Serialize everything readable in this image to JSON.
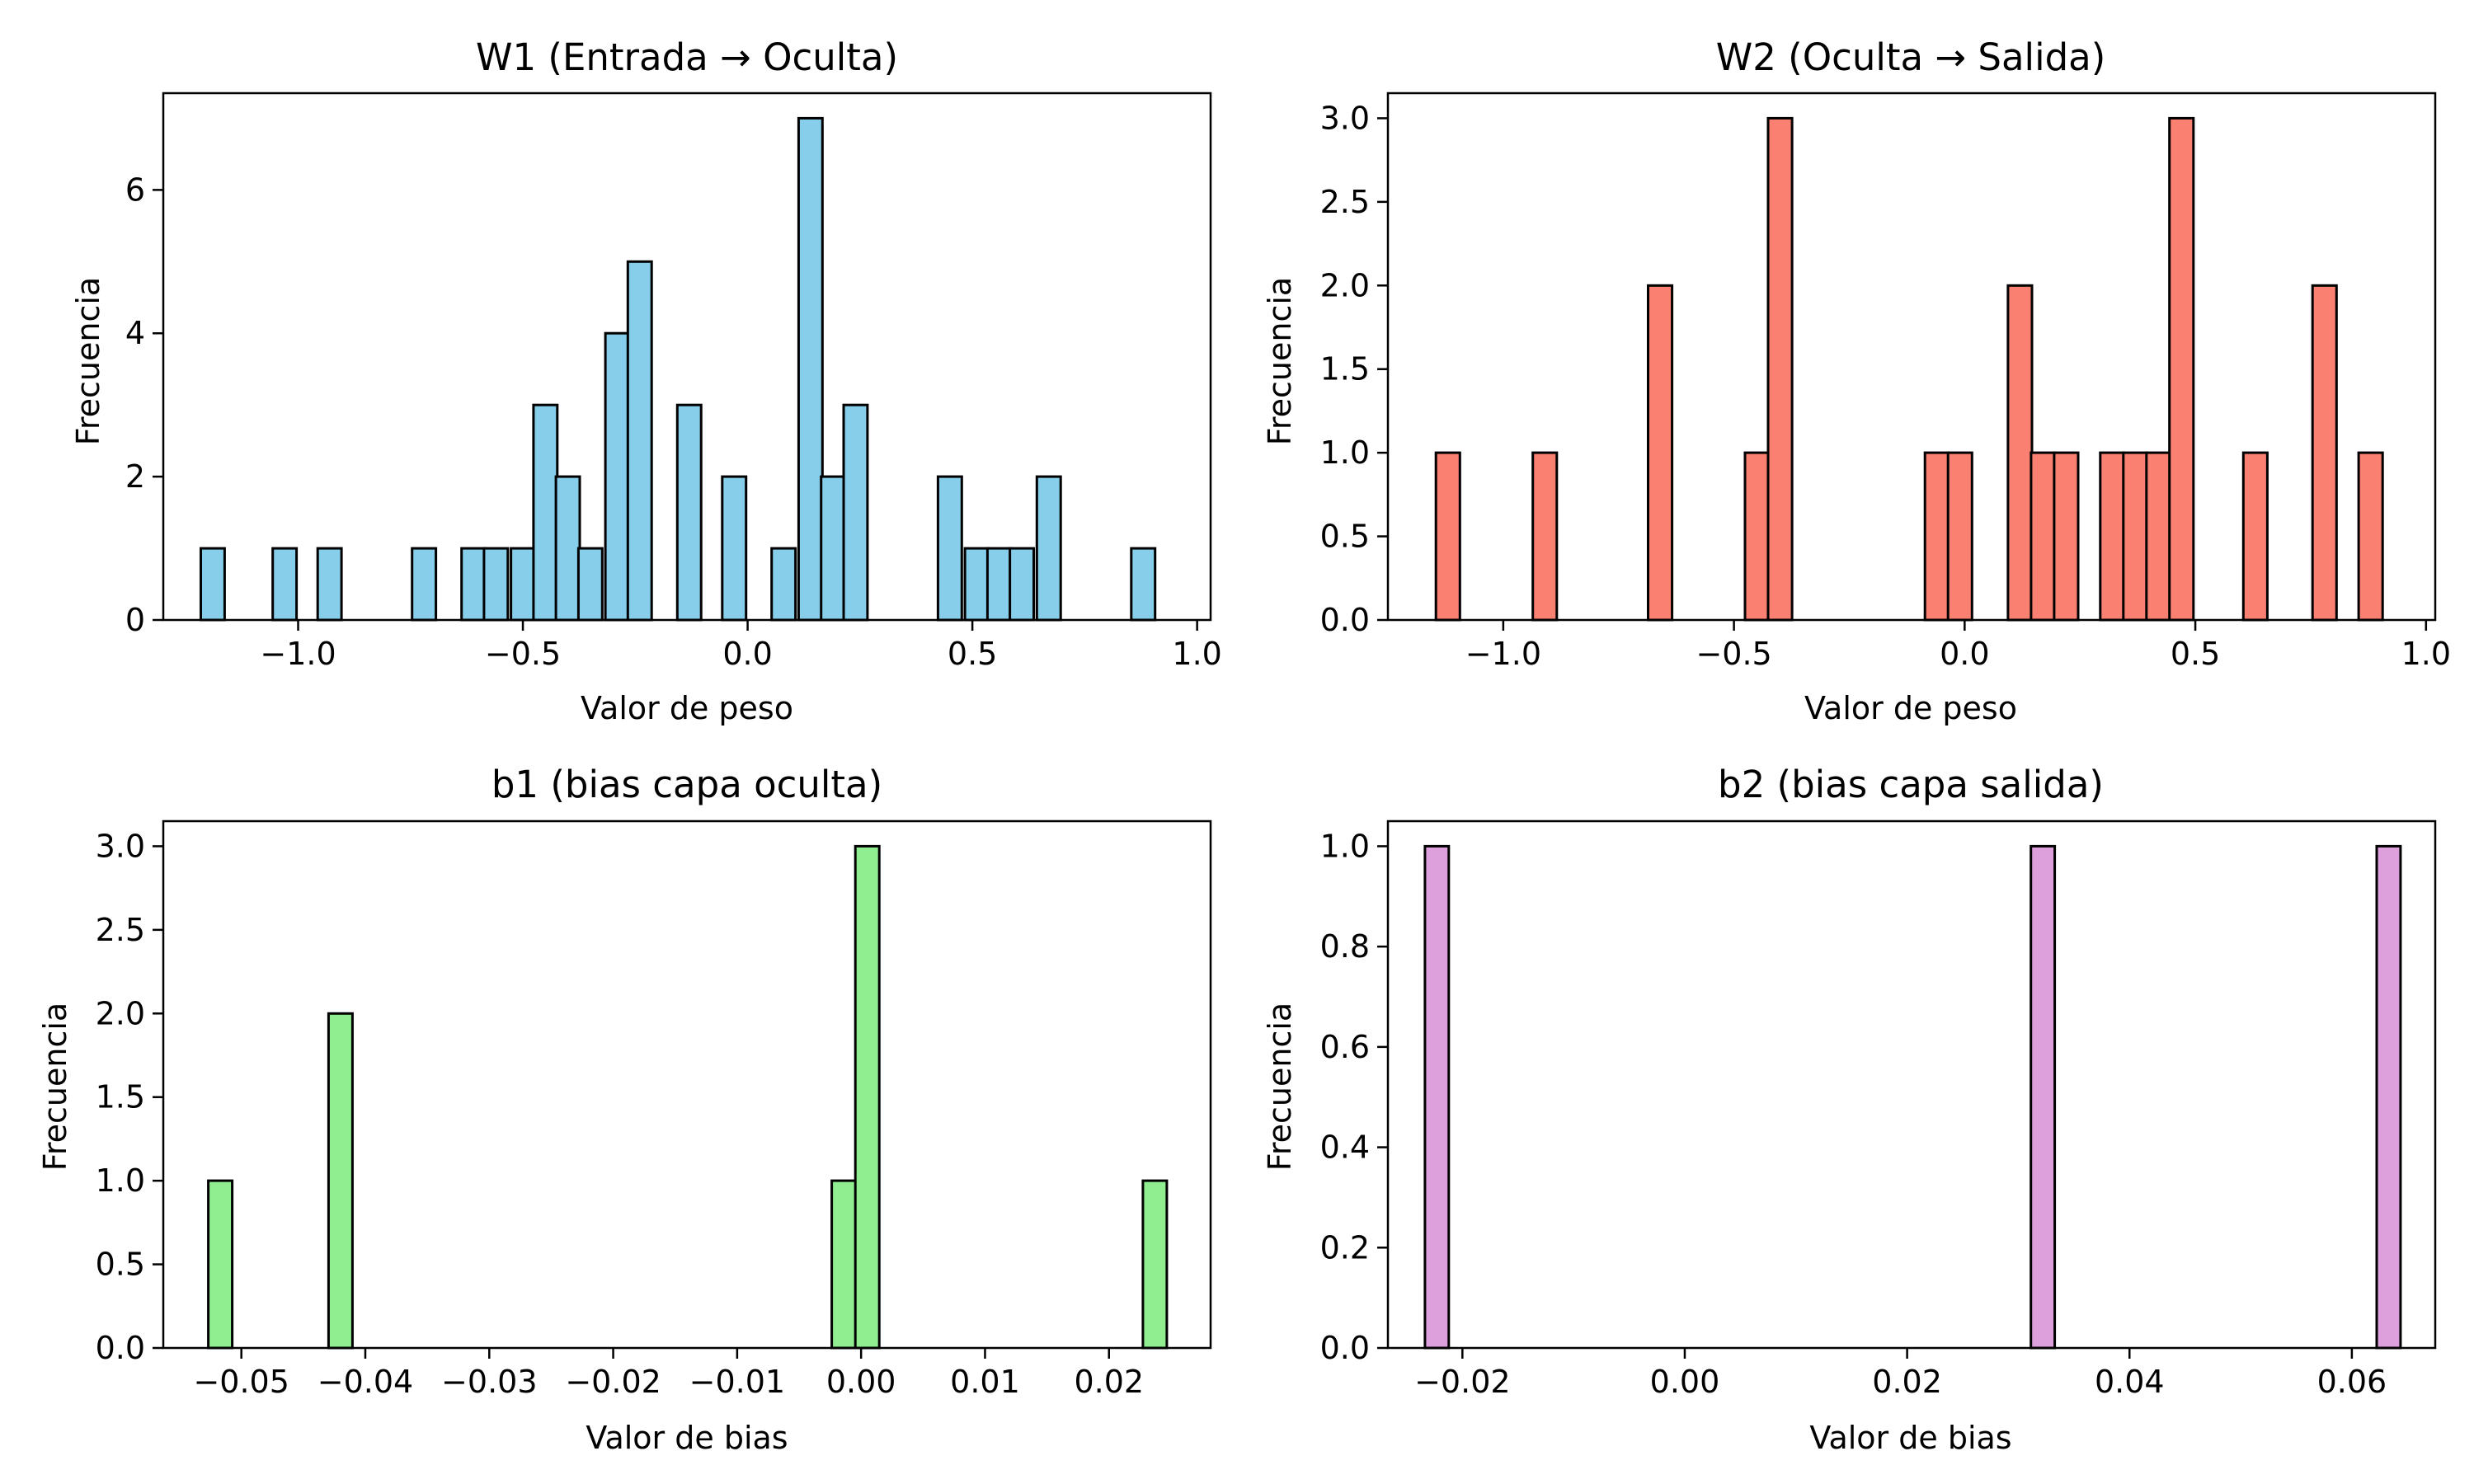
{
  "chart_data": [
    {
      "type": "bar",
      "title": "W1 (Entrada → Oculta)",
      "xlabel": "Valor de peso",
      "ylabel": "Frecuencia",
      "xlim": [
        -1.3,
        1.03
      ],
      "ylim": [
        0,
        7.35
      ],
      "color": "#87ceeb",
      "grid": false,
      "bin_width": 0.053,
      "xticks": [
        -1.0,
        -0.5,
        0.0,
        0.5,
        1.0
      ],
      "xtick_labels": [
        "−1.0",
        "−0.5",
        "0.0",
        "0.5",
        "1.0"
      ],
      "yticks": [
        0,
        2,
        4,
        6
      ],
      "ytick_labels": [
        "0",
        "2",
        "4",
        "6"
      ],
      "bars": [
        {
          "x": -1.19,
          "count": 1
        },
        {
          "x": -1.03,
          "count": 1
        },
        {
          "x": -0.93,
          "count": 1
        },
        {
          "x": -0.72,
          "count": 1
        },
        {
          "x": -0.61,
          "count": 1
        },
        {
          "x": -0.56,
          "count": 1
        },
        {
          "x": -0.5,
          "count": 1
        },
        {
          "x": -0.45,
          "count": 3
        },
        {
          "x": -0.4,
          "count": 2
        },
        {
          "x": -0.35,
          "count": 1
        },
        {
          "x": -0.29,
          "count": 4
        },
        {
          "x": -0.24,
          "count": 5
        },
        {
          "x": -0.13,
          "count": 3
        },
        {
          "x": -0.03,
          "count": 2
        },
        {
          "x": 0.08,
          "count": 1
        },
        {
          "x": 0.14,
          "count": 7
        },
        {
          "x": 0.19,
          "count": 2
        },
        {
          "x": 0.24,
          "count": 3
        },
        {
          "x": 0.45,
          "count": 2
        },
        {
          "x": 0.51,
          "count": 1
        },
        {
          "x": 0.56,
          "count": 1
        },
        {
          "x": 0.61,
          "count": 1
        },
        {
          "x": 0.67,
          "count": 2
        },
        {
          "x": 0.88,
          "count": 1
        }
      ]
    },
    {
      "type": "bar",
      "title": "W2 (Oculta → Salida)",
      "xlabel": "Valor de peso",
      "ylabel": "Frecuencia",
      "xlim": [
        -1.25,
        1.02
      ],
      "ylim": [
        0,
        3.15
      ],
      "color": "#fa8072",
      "grid": false,
      "bin_width": 0.052,
      "xticks": [
        -1.0,
        -0.5,
        0.0,
        0.5,
        1.0
      ],
      "xtick_labels": [
        "−1.0",
        "−0.5",
        "0.0",
        "0.5",
        "1.0"
      ],
      "yticks": [
        0.0,
        0.5,
        1.0,
        1.5,
        2.0,
        2.5,
        3.0
      ],
      "ytick_labels": [
        "0.0",
        "0.5",
        "1.0",
        "1.5",
        "2.0",
        "2.5",
        "3.0"
      ],
      "bars": [
        {
          "x": -1.12,
          "count": 1
        },
        {
          "x": -0.91,
          "count": 1
        },
        {
          "x": -0.66,
          "count": 2
        },
        {
          "x": -0.45,
          "count": 1
        },
        {
          "x": -0.4,
          "count": 3
        },
        {
          "x": -0.06,
          "count": 1
        },
        {
          "x": -0.01,
          "count": 1
        },
        {
          "x": 0.12,
          "count": 2
        },
        {
          "x": 0.17,
          "count": 1
        },
        {
          "x": 0.22,
          "count": 1
        },
        {
          "x": 0.32,
          "count": 1
        },
        {
          "x": 0.37,
          "count": 1
        },
        {
          "x": 0.42,
          "count": 1
        },
        {
          "x": 0.47,
          "count": 3
        },
        {
          "x": 0.63,
          "count": 1
        },
        {
          "x": 0.78,
          "count": 2
        },
        {
          "x": 0.88,
          "count": 1
        }
      ]
    },
    {
      "type": "bar",
      "title": "b1 (bias capa oculta)",
      "xlabel": "Valor de bias",
      "ylabel": "Frecuencia",
      "xlim": [
        -0.0563,
        0.0282
      ],
      "ylim": [
        0,
        3.15
      ],
      "color": "#90ee90",
      "grid": false,
      "bin_width": 0.00193,
      "xticks": [
        -0.05,
        -0.04,
        -0.03,
        -0.02,
        -0.01,
        0.0,
        0.01,
        0.02
      ],
      "xtick_labels": [
        "−0.05",
        "−0.04",
        "−0.03",
        "−0.02",
        "−0.01",
        "0.00",
        "0.01",
        "0.02"
      ],
      "yticks": [
        0.0,
        0.5,
        1.0,
        1.5,
        2.0,
        2.5,
        3.0
      ],
      "ytick_labels": [
        "0.0",
        "0.5",
        "1.0",
        "1.5",
        "2.0",
        "2.5",
        "3.0"
      ],
      "bars": [
        {
          "x": -0.0517,
          "count": 1
        },
        {
          "x": -0.042,
          "count": 2
        },
        {
          "x": -0.0014,
          "count": 1
        },
        {
          "x": 0.0005,
          "count": 3
        },
        {
          "x": 0.0237,
          "count": 1
        }
      ]
    },
    {
      "type": "bar",
      "title": "b2 (bias capa salida)",
      "xlabel": "Valor de bias",
      "ylabel": "Frecuencia",
      "xlim": [
        -0.0267,
        0.0675
      ],
      "ylim": [
        0,
        1.05
      ],
      "color": "#dda0dd",
      "grid": false,
      "bin_width": 0.00214,
      "xticks": [
        -0.02,
        0.0,
        0.02,
        0.04,
        0.06
      ],
      "xtick_labels": [
        "−0.02",
        "0.00",
        "0.02",
        "0.04",
        "0.06"
      ],
      "yticks": [
        0.0,
        0.2,
        0.4,
        0.6,
        0.8,
        1.0
      ],
      "ytick_labels": [
        "0.0",
        "0.2",
        "0.4",
        "0.6",
        "0.8",
        "1.0"
      ],
      "bars": [
        {
          "x": -0.0223,
          "count": 1
        },
        {
          "x": 0.0322,
          "count": 1
        },
        {
          "x": 0.0633,
          "count": 1
        }
      ]
    }
  ]
}
